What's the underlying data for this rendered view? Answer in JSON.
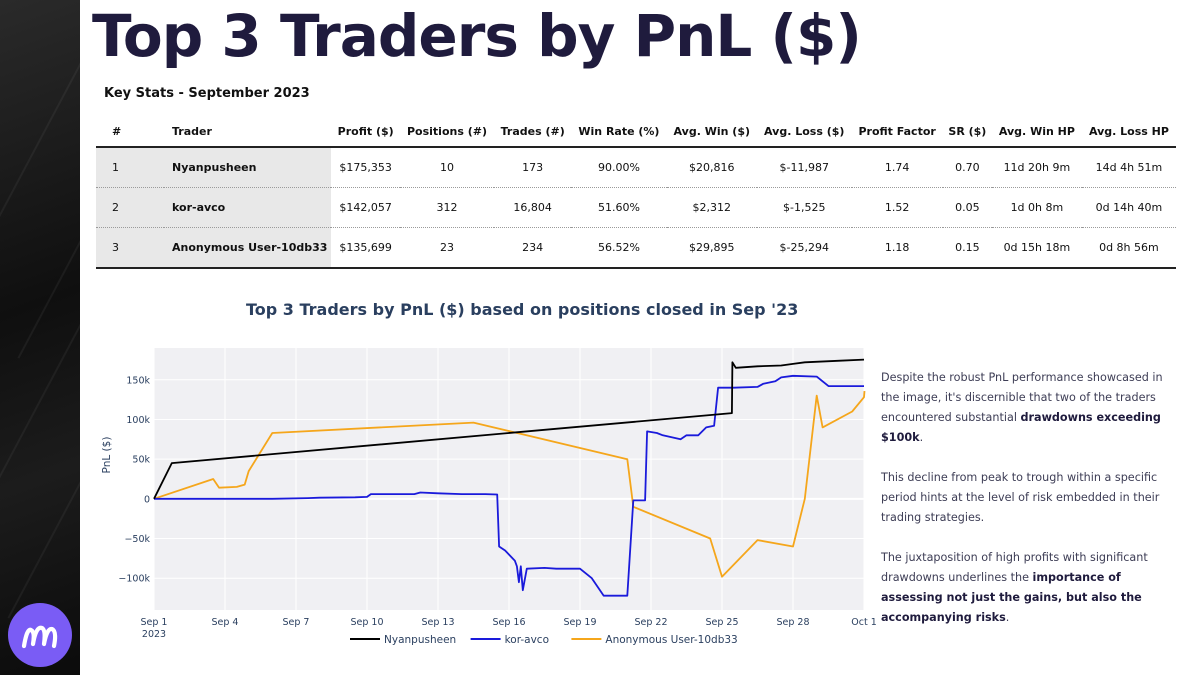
{
  "page": {
    "title": "Top 3 Traders by PnL ($)",
    "subtitle": "Key Stats - September 2023"
  },
  "colors": {
    "accent": "#7a5cf5",
    "nyanpusheen": "#000000",
    "kor_avco": "#1a1adb",
    "anonymous": "#f5a61b"
  },
  "table": {
    "headers": [
      "#",
      "Trader",
      "Profit ($)",
      "Positions (#)",
      "Trades (#)",
      "Win Rate (%)",
      "Avg. Win ($)",
      "Avg. Loss ($)",
      "Profit Factor",
      "SR ($)",
      "Avg. Win HP",
      "Avg. Loss HP"
    ],
    "rows": [
      [
        "1",
        "Nyanpusheen",
        "$175,353",
        "10",
        "173",
        "90.00%",
        "$20,816",
        "$-11,987",
        "1.74",
        "0.70",
        "11d 20h 9m",
        "14d 4h 51m"
      ],
      [
        "2",
        "kor-avco",
        "$142,057",
        "312",
        "16,804",
        "51.60%",
        "$2,312",
        "$-1,525",
        "1.52",
        "0.05",
        "1d 0h 8m",
        "0d 14h 40m"
      ],
      [
        "3",
        "Anonymous User-10db33",
        "$135,699",
        "23",
        "234",
        "56.52%",
        "$29,895",
        "$-25,294",
        "1.18",
        "0.15",
        "0d 15h 18m",
        "0d 8h 56m"
      ]
    ]
  },
  "chart_data": {
    "type": "line",
    "title": "Top 3 Traders by PnL ($) based on positions closed in Sep '23",
    "xlabel": "",
    "ylabel": "PnL ($)",
    "x_range": [
      "2023-09-01",
      "2023-10-01"
    ],
    "ylim": [
      -140000,
      190000
    ],
    "x_ticks": [
      {
        "date": "2023-09-01",
        "label": "Sep 1",
        "sublabel": "2023"
      },
      {
        "date": "2023-09-04",
        "label": "Sep 4"
      },
      {
        "date": "2023-09-07",
        "label": "Sep 7"
      },
      {
        "date": "2023-09-10",
        "label": "Sep 10"
      },
      {
        "date": "2023-09-13",
        "label": "Sep 13"
      },
      {
        "date": "2023-09-16",
        "label": "Sep 16"
      },
      {
        "date": "2023-09-19",
        "label": "Sep 19"
      },
      {
        "date": "2023-09-22",
        "label": "Sep 22"
      },
      {
        "date": "2023-09-25",
        "label": "Sep 25"
      },
      {
        "date": "2023-09-28",
        "label": "Sep 28"
      },
      {
        "date": "2023-10-01",
        "label": "Oct 1"
      }
    ],
    "y_ticks": [
      {
        "value": 150000,
        "label": "150k"
      },
      {
        "value": 100000,
        "label": "100k"
      },
      {
        "value": 50000,
        "label": "50k"
      },
      {
        "value": 0,
        "label": "0"
      },
      {
        "value": -50000,
        "label": "−50k"
      },
      {
        "value": -100000,
        "label": "−100k"
      }
    ],
    "grid": true,
    "legend_position": "bottom",
    "series": [
      {
        "name": "Nyanpusheen",
        "color": "#000000",
        "points": [
          [
            "2023-09-01 00:00",
            0
          ],
          [
            "2023-09-01 18:00",
            45000
          ],
          [
            "2023-09-25 10:00",
            108000
          ],
          [
            "2023-09-25 10:30",
            172000
          ],
          [
            "2023-09-25 14:00",
            165000
          ],
          [
            "2023-09-26 12:00",
            167000
          ],
          [
            "2023-09-27 12:00",
            168000
          ],
          [
            "2023-09-28 00:00",
            170000
          ],
          [
            "2023-09-28 12:00",
            172000
          ],
          [
            "2023-09-30 00:00",
            174000
          ],
          [
            "2023-10-01 00:00",
            175353
          ]
        ]
      },
      {
        "name": "kor-avco",
        "color": "#1a1adb",
        "points": [
          [
            "2023-09-01 00:00",
            0
          ],
          [
            "2023-09-06 00:00",
            0
          ],
          [
            "2023-09-07 12:00",
            1000
          ],
          [
            "2023-09-08 00:00",
            1500
          ],
          [
            "2023-09-09 12:00",
            2000
          ],
          [
            "2023-09-10 00:00",
            2500
          ],
          [
            "2023-09-10 04:00",
            6000
          ],
          [
            "2023-09-11 00:00",
            6000
          ],
          [
            "2023-09-12 00:00",
            6000
          ],
          [
            "2023-09-12 06:00",
            8000
          ],
          [
            "2023-09-13 00:00",
            7000
          ],
          [
            "2023-09-14 00:00",
            6000
          ],
          [
            "2023-09-15 00:00",
            6000
          ],
          [
            "2023-09-15 12:00",
            5500
          ],
          [
            "2023-09-15 14:00",
            -60000
          ],
          [
            "2023-09-15 20:00",
            -65000
          ],
          [
            "2023-09-16 06:00",
            -78000
          ],
          [
            "2023-09-16 08:00",
            -85000
          ],
          [
            "2023-09-16 10:00",
            -105000
          ],
          [
            "2023-09-16 12:00",
            -85000
          ],
          [
            "2023-09-16 14:00",
            -115000
          ],
          [
            "2023-09-16 18:00",
            -88000
          ],
          [
            "2023-09-17 12:00",
            -87000
          ],
          [
            "2023-09-18 00:00",
            -88000
          ],
          [
            "2023-09-19 00:00",
            -88000
          ],
          [
            "2023-09-19 12:00",
            -100000
          ],
          [
            "2023-09-20 00:00",
            -122000
          ],
          [
            "2023-09-21 00:00",
            -122000
          ],
          [
            "2023-09-21 06:00",
            -2000
          ],
          [
            "2023-09-21 18:00",
            -2000
          ],
          [
            "2023-09-21 20:00",
            85000
          ],
          [
            "2023-09-22 06:00",
            83000
          ],
          [
            "2023-09-22 12:00",
            80000
          ],
          [
            "2023-09-23 06:00",
            75000
          ],
          [
            "2023-09-23 12:00",
            80000
          ],
          [
            "2023-09-24 00:00",
            80000
          ],
          [
            "2023-09-24 08:00",
            90000
          ],
          [
            "2023-09-24 16:00",
            92000
          ],
          [
            "2023-09-24 20:00",
            140000
          ],
          [
            "2023-09-25 12:00",
            140000
          ],
          [
            "2023-09-26 12:00",
            141000
          ],
          [
            "2023-09-26 18:00",
            145000
          ],
          [
            "2023-09-27 06:00",
            148000
          ],
          [
            "2023-09-27 12:00",
            153000
          ],
          [
            "2023-09-28 00:00",
            155000
          ],
          [
            "2023-09-29 00:00",
            154000
          ],
          [
            "2023-09-29 12:00",
            142000
          ],
          [
            "2023-09-30 00:00",
            142000
          ],
          [
            "2023-10-01 00:00",
            142057
          ]
        ]
      },
      {
        "name": "Anonymous User-10db33",
        "color": "#f5a61b",
        "points": [
          [
            "2023-09-01 00:00",
            0
          ],
          [
            "2023-09-03 12:00",
            25000
          ],
          [
            "2023-09-03 18:00",
            14000
          ],
          [
            "2023-09-04 12:00",
            15000
          ],
          [
            "2023-09-04 20:00",
            18000
          ],
          [
            "2023-09-05 00:00",
            35000
          ],
          [
            "2023-09-06 00:00",
            83000
          ],
          [
            "2023-09-14 12:00",
            96000
          ],
          [
            "2023-09-21 00:00",
            50000
          ],
          [
            "2023-09-21 06:00",
            -10000
          ],
          [
            "2023-09-24 12:00",
            -50000
          ],
          [
            "2023-09-25 00:00",
            -98000
          ],
          [
            "2023-09-26 12:00",
            -52000
          ],
          [
            "2023-09-28 00:00",
            -60000
          ],
          [
            "2023-09-28 12:00",
            0
          ],
          [
            "2023-09-29 00:00",
            130000
          ],
          [
            "2023-09-29 06:00",
            90000
          ],
          [
            "2023-09-30 12:00",
            110000
          ],
          [
            "2023-10-01 00:00",
            128000
          ],
          [
            "2023-10-01 00:30",
            135699
          ]
        ]
      }
    ]
  },
  "commentary": {
    "p1_text": "Despite the robust PnL performance showcased in the image, it's discernible that two of the traders encountered substantial ",
    "p1_bold": "drawdowns exceeding $100k",
    "p1_end": ".",
    "p2_text": "This decline from peak to trough within a specific period hints at the level of risk embedded in their trading strategies.",
    "p3_text": "The juxtaposition of high profits with significant drawdowns underlines the ",
    "p3_bold": "importance of assessing not just the gains, but also the accompanying risks",
    "p3_end": "."
  }
}
